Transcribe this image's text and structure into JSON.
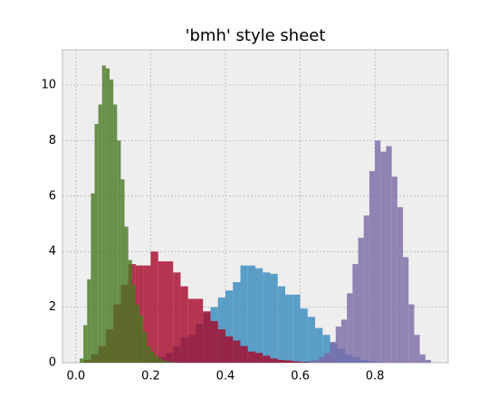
{
  "chart_data": {
    "type": "histogram",
    "title": "'bmh' style sheet",
    "xlim": [
      -0.036,
      0.996
    ],
    "ylim": [
      0,
      11.27
    ],
    "xticks": [
      {
        "value": 0,
        "label": "0.0"
      },
      0.2,
      0.4,
      0.6,
      0.8
    ],
    "yticks": [
      0,
      2,
      4,
      6,
      8,
      10
    ],
    "grid": true,
    "opacity": 0.8,
    "series": [
      {
        "color": "#348ABD",
        "bins": [
          0.18,
          0.2,
          0.22,
          0.24,
          0.26,
          0.28,
          0.3,
          0.32,
          0.34,
          0.36,
          0.38,
          0.4,
          0.42,
          0.44,
          0.46,
          0.48,
          0.5,
          0.52,
          0.54,
          0.56,
          0.58,
          0.6,
          0.62,
          0.64,
          0.66,
          0.68,
          0.7,
          0.72,
          0.74,
          0.76,
          0.78,
          0.8,
          0.82
        ],
        "values": [
          0.05,
          0.1,
          0.2,
          0.35,
          0.6,
          0.9,
          1.0,
          1.4,
          1.8,
          2.0,
          2.35,
          2.6,
          2.9,
          3.5,
          3.5,
          3.4,
          3.25,
          3.2,
          2.75,
          2.45,
          2.45,
          1.95,
          1.65,
          1.25,
          1.0,
          0.7,
          0.5,
          0.3,
          0.2,
          0.1,
          0.05,
          0.02
        ]
      },
      {
        "color": "#A60628",
        "bins": [
          0.02,
          0.04,
          0.06,
          0.08,
          0.1,
          0.12,
          0.14,
          0.16,
          0.18,
          0.2,
          0.22,
          0.24,
          0.26,
          0.28,
          0.3,
          0.32,
          0.34,
          0.36,
          0.38,
          0.4,
          0.42,
          0.44,
          0.46,
          0.48,
          0.5,
          0.52,
          0.54,
          0.56,
          0.58,
          0.6,
          0.62,
          0.64,
          0.66,
          0.68,
          0.7
        ],
        "values": [
          0.1,
          0.3,
          0.6,
          1.2,
          2.1,
          2.8,
          3.55,
          3.5,
          3.5,
          4.0,
          3.65,
          3.65,
          3.25,
          2.75,
          2.3,
          2.3,
          1.85,
          1.5,
          1.2,
          0.95,
          0.8,
          0.6,
          0.4,
          0.35,
          0.25,
          0.15,
          0.1,
          0.08,
          0.05,
          0.03,
          0.02,
          0.01,
          0.01,
          0.01
        ]
      },
      {
        "color": "#7A68A6",
        "bins": [
          0.62,
          0.635,
          0.65,
          0.665,
          0.68,
          0.695,
          0.71,
          0.725,
          0.74,
          0.755,
          0.77,
          0.785,
          0.8,
          0.815,
          0.83,
          0.845,
          0.86,
          0.875,
          0.89,
          0.905,
          0.92,
          0.935,
          0.95
        ],
        "values": [
          0.05,
          0.1,
          0.2,
          0.35,
          0.75,
          1.3,
          1.55,
          2.5,
          3.55,
          4.5,
          5.3,
          6.9,
          8.0,
          7.6,
          7.8,
          6.7,
          5.6,
          3.8,
          2.1,
          1.0,
          0.3,
          0.1
        ]
      },
      {
        "color": "#467821",
        "bins": [
          0.01,
          0.02,
          0.03,
          0.04,
          0.05,
          0.06,
          0.07,
          0.08,
          0.09,
          0.1,
          0.11,
          0.12,
          0.13,
          0.14,
          0.15,
          0.16,
          0.17,
          0.18,
          0.19,
          0.2,
          0.21,
          0.22,
          0.23,
          0.24,
          0.25,
          0.26,
          0.27
        ],
        "values": [
          0.15,
          1.35,
          3.0,
          6.1,
          8.6,
          9.3,
          10.7,
          10.6,
          10.2,
          9.3,
          8.0,
          6.6,
          4.9,
          3.7,
          2.8,
          2.1,
          1.7,
          1.1,
          0.6,
          0.4,
          0.25,
          0.15,
          0.08,
          0.05,
          0.03,
          0.02
        ]
      }
    ]
  }
}
